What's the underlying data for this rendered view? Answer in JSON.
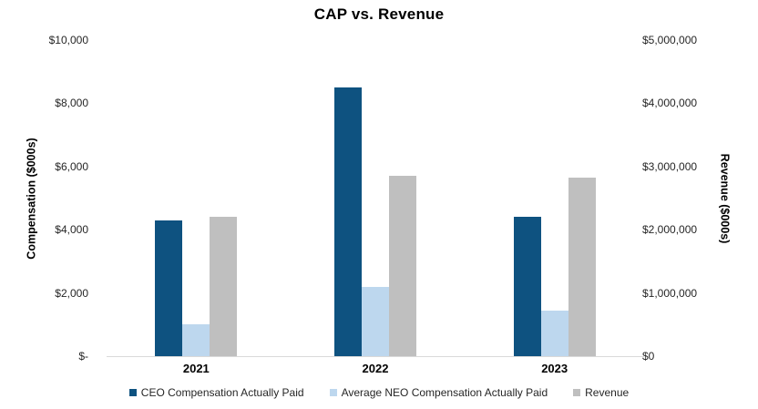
{
  "chart_data": {
    "type": "bar",
    "title": "CAP vs. Revenue",
    "categories": [
      "2021",
      "2022",
      "2023"
    ],
    "series": [
      {
        "key": "ceo",
        "name": "CEO Compensation Actually Paid",
        "axis": "left",
        "color": "#0E5280",
        "values": [
          4300,
          8500,
          4400
        ]
      },
      {
        "key": "neo",
        "name": "Average NEO Compensation Actually Paid",
        "axis": "left",
        "color": "#BDD7EE",
        "values": [
          1000,
          2200,
          1450
        ]
      },
      {
        "key": "revenue",
        "name": "Revenue",
        "axis": "right",
        "color": "#BFBFBF",
        "values": [
          2200000,
          2860000,
          2830000
        ]
      }
    ],
    "y_axis_left": {
      "title": "Compensation ($000s)",
      "min": 0,
      "max": 10000,
      "tick_labels": [
        "$-",
        "$2,000",
        "$4,000",
        "$6,000",
        "$8,000",
        "$10,000"
      ]
    },
    "y_axis_right": {
      "title": "Revenue ($000s)",
      "min": 0,
      "max": 5000000,
      "tick_labels": [
        "$0",
        "$1,000,000",
        "$2,000,000",
        "$3,000,000",
        "$4,000,000",
        "$5,000,000"
      ]
    },
    "legend_position": "bottom",
    "grid": false,
    "axis_line_color": "#D9D9D9",
    "text_color": "#262626"
  }
}
